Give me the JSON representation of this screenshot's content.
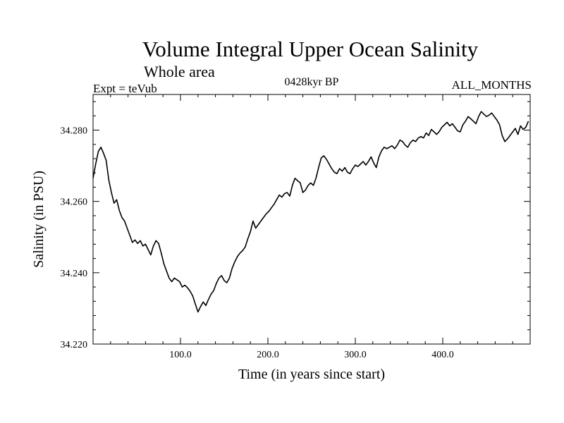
{
  "chart_data": {
    "type": "line",
    "title": "Volume Integral Upper Ocean Salinity",
    "subtitle": "Whole area",
    "left_label": "Expt = teVub",
    "center_label": "0428kyr BP",
    "right_label": "ALL_MONTHS",
    "xlabel": "Time (in years since start)",
    "ylabel": "Salinity (in PSU)",
    "xlim": [
      0,
      500
    ],
    "ylim": [
      34.22,
      34.29
    ],
    "xticks": [
      100,
      200,
      300,
      400
    ],
    "xtick_labels": [
      "100.0",
      "200.0",
      "300.0",
      "400.0"
    ],
    "yticks": [
      34.22,
      34.24,
      34.26,
      34.28
    ],
    "ytick_labels": [
      "34.220",
      "34.240",
      "34.260",
      "34.280"
    ],
    "grid": false,
    "line_color": "#000000",
    "series": [
      {
        "x": [
          0,
          3,
          6,
          9,
          12,
          15,
          18,
          21,
          24,
          27,
          30,
          33,
          36,
          39,
          42,
          45,
          48,
          51,
          54,
          57,
          60,
          63,
          66,
          69,
          72,
          75,
          78,
          81,
          84,
          87,
          90,
          93,
          96,
          99,
          102,
          105,
          108,
          111,
          114,
          117,
          120,
          123,
          126,
          129,
          132,
          135,
          138,
          141,
          144,
          147,
          150,
          153,
          156,
          159,
          162,
          165,
          168,
          171,
          174,
          177,
          180,
          183,
          186,
          189,
          192,
          195,
          198,
          201,
          204,
          207,
          210,
          213,
          216,
          219,
          222,
          225,
          228,
          231,
          234,
          237,
          240,
          243,
          246,
          249,
          252,
          255,
          258,
          261,
          264,
          267,
          270,
          273,
          276,
          279,
          282,
          285,
          288,
          291,
          294,
          297,
          300,
          303,
          306,
          309,
          312,
          315,
          318,
          321,
          324,
          327,
          330,
          333,
          336,
          339,
          342,
          345,
          348,
          351,
          354,
          357,
          360,
          363,
          366,
          369,
          372,
          375,
          378,
          381,
          384,
          387,
          390,
          393,
          396,
          399,
          402,
          405,
          408,
          411,
          414,
          417,
          420,
          423,
          426,
          429,
          432,
          435,
          438,
          441,
          444,
          447,
          450,
          453,
          456,
          459,
          462,
          465,
          468,
          471,
          474,
          477,
          480,
          483,
          486,
          489,
          492,
          495,
          498
        ],
        "values": [
          34.2665,
          34.2705,
          34.274,
          34.2752,
          34.2735,
          34.2715,
          34.266,
          34.2625,
          34.2595,
          34.2605,
          34.2575,
          34.2555,
          34.2545,
          34.2525,
          34.2505,
          34.2485,
          34.2492,
          34.2482,
          34.249,
          34.2475,
          34.248,
          34.2465,
          34.245,
          34.2475,
          34.249,
          34.2482,
          34.2455,
          34.2425,
          34.2405,
          34.2385,
          34.2375,
          34.2385,
          34.238,
          34.2375,
          34.236,
          34.2365,
          34.2358,
          34.2348,
          34.2335,
          34.2312,
          34.229,
          34.2305,
          34.2318,
          34.2308,
          34.2325,
          34.234,
          34.235,
          34.237,
          34.2385,
          34.2392,
          34.2378,
          34.2372,
          34.2385,
          34.2412,
          34.243,
          34.2445,
          34.2455,
          34.2462,
          34.2472,
          34.2495,
          34.2515,
          34.2545,
          34.2525,
          34.2535,
          34.2545,
          34.2555,
          34.2565,
          34.2572,
          34.2582,
          34.2592,
          34.2605,
          34.2618,
          34.2612,
          34.2622,
          34.2625,
          34.2615,
          34.2645,
          34.2665,
          34.2658,
          34.2652,
          34.2625,
          34.2632,
          34.2645,
          34.2652,
          34.2645,
          34.2665,
          34.2695,
          34.2722,
          34.2728,
          34.2718,
          34.2705,
          34.2692,
          34.2682,
          34.2678,
          34.2692,
          34.2685,
          34.2695,
          34.2682,
          34.2678,
          34.2692,
          34.2702,
          34.2698,
          34.2705,
          34.2712,
          34.2702,
          34.2712,
          34.2725,
          34.2708,
          34.2695,
          34.2725,
          34.2742,
          34.2752,
          34.2748,
          34.2752,
          34.2756,
          34.2748,
          34.2758,
          34.2772,
          34.2768,
          34.2758,
          34.2752,
          34.2765,
          34.2772,
          34.2768,
          34.2778,
          34.2782,
          34.2778,
          34.2792,
          34.2785,
          34.2802,
          34.2795,
          34.2788,
          34.2796,
          34.2808,
          34.2815,
          34.2822,
          34.2812,
          34.2818,
          34.2808,
          34.2798,
          34.2795,
          34.2815,
          34.2825,
          34.2838,
          34.2832,
          34.2825,
          34.2818,
          34.2838,
          34.2852,
          34.2845,
          34.2838,
          34.2842,
          34.2848,
          34.2838,
          34.2828,
          34.2815,
          34.2785,
          34.2768,
          34.2775,
          34.2785,
          34.2795,
          34.2805,
          34.2788,
          34.2812,
          34.2802,
          34.2808,
          34.2825
        ]
      }
    ]
  }
}
